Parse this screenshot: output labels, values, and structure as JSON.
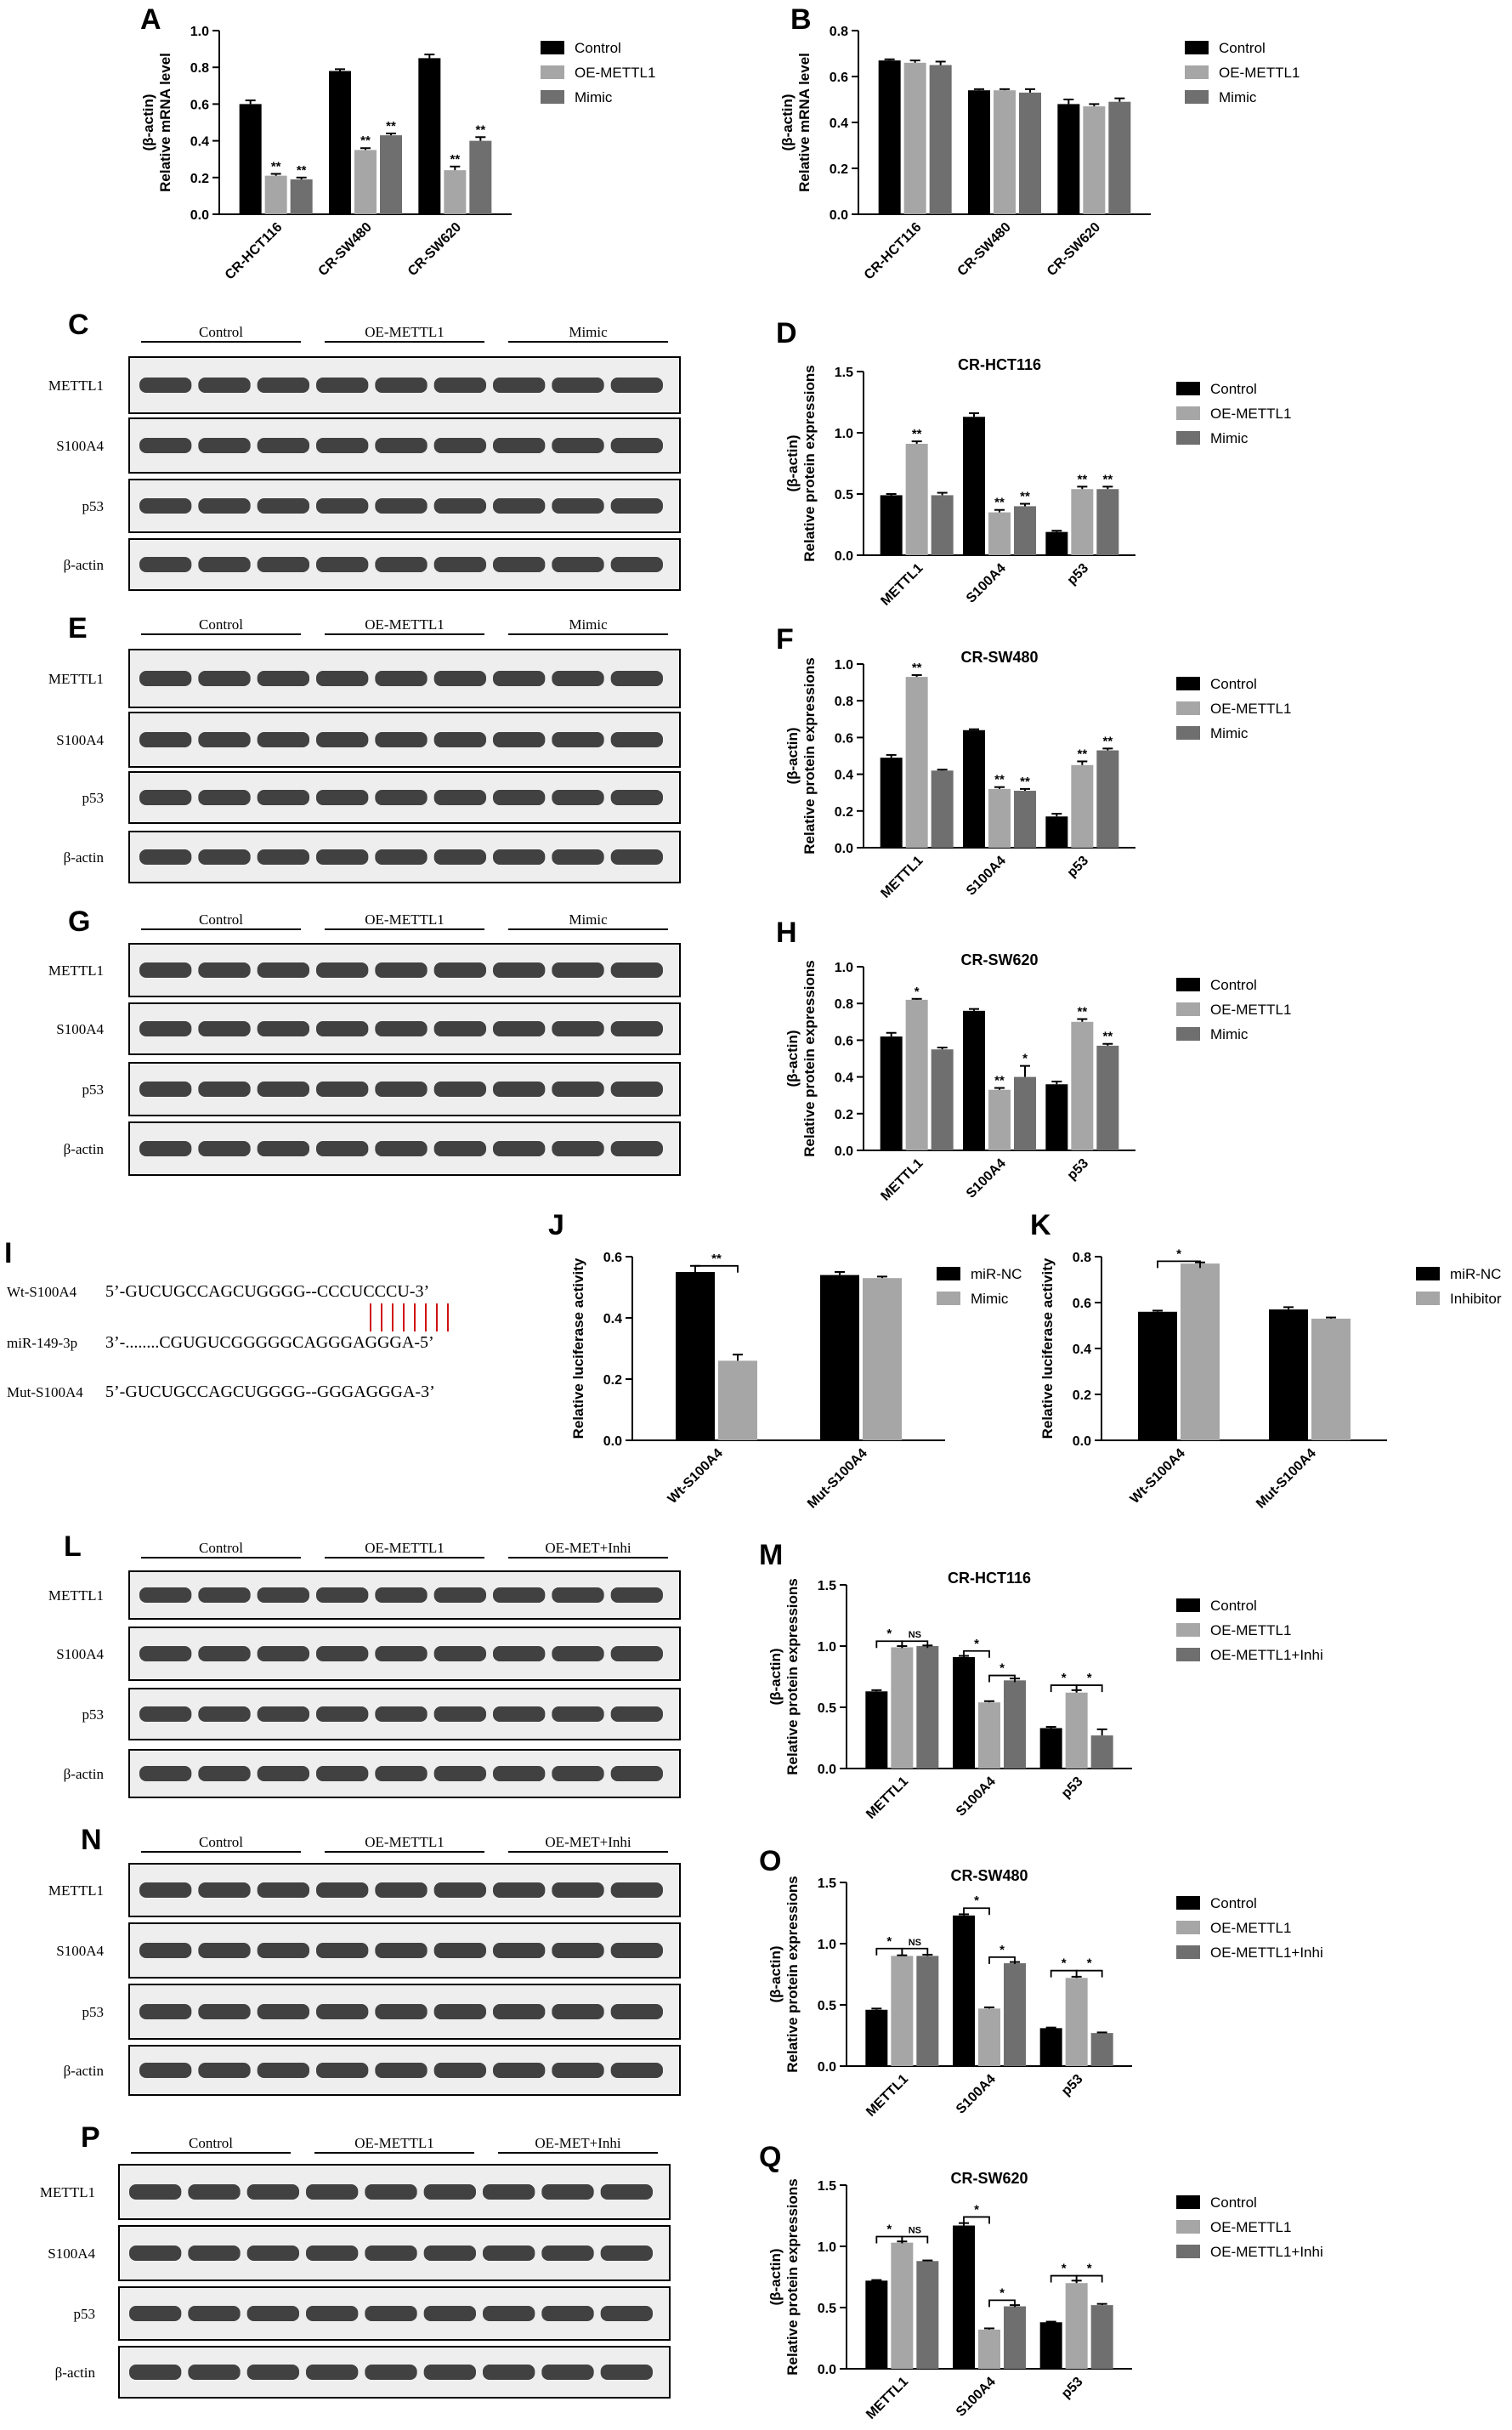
{
  "colors": {
    "control": "#000000",
    "oe": "#a6a6a6",
    "mimic": "#6f6f6f",
    "pair1": "#000000",
    "pair2": "#a6a6a6",
    "blotBg": "#eeeeee",
    "band": "#222222"
  },
  "panels": {
    "A": {
      "letter": "A",
      "ylabel": [
        "Relative mRNA level",
        "(β-actin)"
      ],
      "title": "",
      "yticks": [
        "0.0",
        "0.2",
        "0.4",
        "0.6",
        "0.8",
        "1.0"
      ],
      "legend": [
        "Control",
        "OE-METTL1",
        "Mimic"
      ]
    },
    "B": {
      "letter": "B",
      "ylabel": [
        "Relative mRNA level",
        "(β-actin)"
      ],
      "title": "",
      "yticks": [
        "0.0",
        "0.2",
        "0.4",
        "0.6",
        "0.8"
      ],
      "legend": [
        "Control",
        "OE-METTL1",
        "Mimic"
      ]
    },
    "D": {
      "letter": "D",
      "ylabel": [
        "Relative protein expressions",
        "(β-actin)"
      ],
      "title": "CR-HCT116",
      "yticks": [
        "0.0",
        "0.5",
        "1.0",
        "1.5"
      ],
      "legend": [
        "Control",
        "OE-METTL1",
        "Mimic"
      ]
    },
    "F": {
      "letter": "F",
      "ylabel": [
        "Relative protein expressions",
        "(β-actin)"
      ],
      "title": "CR-SW480",
      "yticks": [
        "0.0",
        "0.2",
        "0.4",
        "0.6",
        "0.8",
        "1.0"
      ],
      "legend": [
        "Control",
        "OE-METTL1",
        "Mimic"
      ]
    },
    "H": {
      "letter": "H",
      "ylabel": [
        "Relative protein expressions",
        "(β-actin)"
      ],
      "title": "CR-SW620",
      "yticks": [
        "0.0",
        "0.2",
        "0.4",
        "0.6",
        "0.8",
        "1.0"
      ],
      "legend": [
        "Control",
        "OE-METTL1",
        "Mimic"
      ]
    },
    "J": {
      "letter": "J",
      "ylabel": [
        "Relative luciferase activity"
      ],
      "title": "",
      "yticks": [
        "0.0",
        "0.2",
        "0.4",
        "0.6"
      ],
      "legend": [
        "miR-NC",
        "Mimic"
      ]
    },
    "K": {
      "letter": "K",
      "ylabel": [
        "Relative luciferase activity"
      ],
      "title": "",
      "yticks": [
        "0.0",
        "0.2",
        "0.4",
        "0.6",
        "0.8"
      ],
      "legend": [
        "miR-NC",
        "Inhibitor"
      ]
    },
    "M": {
      "letter": "M",
      "ylabel": [
        "Relative protein expressions",
        "(β-actin)"
      ],
      "title": "CR-HCT116",
      "yticks": [
        "0.0",
        "0.5",
        "1.0",
        "1.5"
      ],
      "legend": [
        "Control",
        "OE-METTL1",
        "OE-METTL1+Inhi"
      ]
    },
    "O": {
      "letter": "O",
      "ylabel": [
        "Relative protein expressions",
        "(β-actin)"
      ],
      "title": "CR-SW480",
      "yticks": [
        "0.0",
        "0.5",
        "1.0",
        "1.5"
      ],
      "legend": [
        "Control",
        "OE-METTL1",
        "OE-METTL1+Inhi"
      ]
    },
    "Q": {
      "letter": "Q",
      "ylabel": [
        "Relative protein expressions",
        "(β-actin)"
      ],
      "title": "CR-SW620",
      "yticks": [
        "0.0",
        "0.5",
        "1.0",
        "1.5"
      ],
      "legend": [
        "Control",
        "OE-METTL1",
        "OE-METTL1+Inhi"
      ]
    }
  },
  "blots": {
    "C": {
      "letter": "C",
      "groups": [
        "Control",
        "OE-METTL1",
        "Mimic"
      ],
      "rows": [
        "METTL1",
        "S100A4",
        "p53",
        "β-actin"
      ]
    },
    "E": {
      "letter": "E",
      "groups": [
        "Control",
        "OE-METTL1",
        "Mimic"
      ],
      "rows": [
        "METTL1",
        "S100A4",
        "p53",
        "β-actin"
      ]
    },
    "G": {
      "letter": "G",
      "groups": [
        "Control",
        "OE-METTL1",
        "Mimic"
      ],
      "rows": [
        "METTL1",
        "S100A4",
        "p53",
        "β-actin"
      ]
    },
    "L": {
      "letter": "L",
      "groups": [
        "Control",
        "OE-METTL1",
        "OE-MET+Inhi"
      ],
      "rows": [
        "METTL1",
        "S100A4",
        "p53",
        "β-actin"
      ]
    },
    "N": {
      "letter": "N",
      "groups": [
        "Control",
        "OE-METTL1",
        "OE-MET+Inhi"
      ],
      "rows": [
        "METTL1",
        "S100A4",
        "p53",
        "β-actin"
      ]
    },
    "P": {
      "letter": "P",
      "groups": [
        "Control",
        "OE-METTL1",
        "OE-MET+Inhi"
      ],
      "rows": [
        "METTL1",
        "S100A4",
        "p53",
        "β-actin"
      ]
    }
  },
  "sequence": {
    "letter": "I",
    "rows": [
      {
        "label": "Wt-S100A4",
        "seq": "5’-GUCUGCCAGCUGGGG--CCCUCCCU-3’"
      },
      {
        "label": "miR-149-3p",
        "seq": "3’-........CGUGUCGGGGGCAGGGAGGGA-5’"
      },
      {
        "label": "Mut-S100A4",
        "seq": "5’-GUCUGCCAGCUGGGG--GGGAGGGA-3’"
      }
    ]
  },
  "chart_data": [
    {
      "id": "A",
      "type": "bar",
      "categories": [
        "CR-HCT116",
        "CR-SW480",
        "CR-SW620"
      ],
      "ylim": [
        0,
        1.0
      ],
      "ylabel": "Relative mRNA level (β-actin)",
      "series": [
        {
          "name": "Control",
          "values": [
            0.6,
            0.78,
            0.85
          ],
          "err": [
            0.02,
            0.01,
            0.02
          ]
        },
        {
          "name": "OE-METTL1",
          "values": [
            0.21,
            0.35,
            0.24
          ],
          "err": [
            0.01,
            0.01,
            0.02
          ]
        },
        {
          "name": "Mimic",
          "values": [
            0.19,
            0.43,
            0.4
          ],
          "err": [
            0.01,
            0.01,
            0.02
          ]
        }
      ],
      "annotations": [
        {
          "text": "**",
          "cat": 0,
          "s": 1
        },
        {
          "text": "**",
          "cat": 0,
          "s": 2
        },
        {
          "text": "**",
          "cat": 1,
          "s": 1
        },
        {
          "text": "**",
          "cat": 1,
          "s": 2
        },
        {
          "text": "**",
          "cat": 2,
          "s": 1
        },
        {
          "text": "**",
          "cat": 2,
          "s": 2
        }
      ]
    },
    {
      "id": "B",
      "type": "bar",
      "categories": [
        "CR-HCT116",
        "CR-SW480",
        "CR-SW620"
      ],
      "ylim": [
        0,
        0.8
      ],
      "ylabel": "Relative mRNA level (β-actin)",
      "series": [
        {
          "name": "Control",
          "values": [
            0.67,
            0.54,
            0.48
          ],
          "err": [
            0.005,
            0.005,
            0.02
          ]
        },
        {
          "name": "OE-METTL1",
          "values": [
            0.66,
            0.54,
            0.47
          ],
          "err": [
            0.01,
            0.005,
            0.01
          ]
        },
        {
          "name": "Mimic",
          "values": [
            0.65,
            0.53,
            0.49
          ],
          "err": [
            0.015,
            0.015,
            0.015
          ]
        }
      ],
      "annotations": []
    },
    {
      "id": "D",
      "type": "bar",
      "title": "CR-HCT116",
      "categories": [
        "METTL1",
        "S100A4",
        "p53"
      ],
      "ylim": [
        0,
        1.5
      ],
      "ylabel": "Relative protein expressions (β-actin)",
      "series": [
        {
          "name": "Control",
          "values": [
            0.49,
            1.13,
            0.19
          ],
          "err": [
            0.01,
            0.03,
            0.01
          ]
        },
        {
          "name": "OE-METTL1",
          "values": [
            0.91,
            0.35,
            0.54
          ],
          "err": [
            0.02,
            0.02,
            0.02
          ]
        },
        {
          "name": "Mimic",
          "values": [
            0.49,
            0.4,
            0.54
          ],
          "err": [
            0.02,
            0.02,
            0.02
          ]
        }
      ],
      "annotations": [
        {
          "text": "**",
          "cat": 0,
          "s": 1
        },
        {
          "text": "**",
          "cat": 1,
          "s": 1
        },
        {
          "text": "**",
          "cat": 1,
          "s": 2
        },
        {
          "text": "**",
          "cat": 2,
          "s": 1
        },
        {
          "text": "**",
          "cat": 2,
          "s": 2
        }
      ]
    },
    {
      "id": "F",
      "type": "bar",
      "title": "CR-SW480",
      "categories": [
        "METTL1",
        "S100A4",
        "p53"
      ],
      "ylim": [
        0,
        1.0
      ],
      "ylabel": "Relative protein expressions (β-actin)",
      "series": [
        {
          "name": "Control",
          "values": [
            0.49,
            0.64,
            0.17
          ],
          "err": [
            0.015,
            0.005,
            0.015
          ]
        },
        {
          "name": "OE-METTL1",
          "values": [
            0.93,
            0.32,
            0.45
          ],
          "err": [
            0.01,
            0.01,
            0.02
          ]
        },
        {
          "name": "Mimic",
          "values": [
            0.42,
            0.31,
            0.53
          ],
          "err": [
            0.005,
            0.01,
            0.01
          ]
        }
      ],
      "annotations": [
        {
          "text": "**",
          "cat": 0,
          "s": 1
        },
        {
          "text": "**",
          "cat": 1,
          "s": 1
        },
        {
          "text": "**",
          "cat": 1,
          "s": 2
        },
        {
          "text": "**",
          "cat": 2,
          "s": 1
        },
        {
          "text": "**",
          "cat": 2,
          "s": 2
        }
      ]
    },
    {
      "id": "H",
      "type": "bar",
      "title": "CR-SW620",
      "categories": [
        "METTL1",
        "S100A4",
        "p53"
      ],
      "ylim": [
        0,
        1.0
      ],
      "ylabel": "Relative protein expressions (β-actin)",
      "series": [
        {
          "name": "Control",
          "values": [
            0.62,
            0.76,
            0.36
          ],
          "err": [
            0.02,
            0.01,
            0.015
          ]
        },
        {
          "name": "OE-METTL1",
          "values": [
            0.82,
            0.33,
            0.7
          ],
          "err": [
            0.005,
            0.01,
            0.015
          ]
        },
        {
          "name": "Mimic",
          "values": [
            0.55,
            0.4,
            0.57
          ],
          "err": [
            0.01,
            0.06,
            0.01
          ]
        }
      ],
      "annotations": [
        {
          "text": "*",
          "cat": 0,
          "s": 1
        },
        {
          "text": "**",
          "cat": 1,
          "s": 1
        },
        {
          "text": "*",
          "cat": 1,
          "s": 2
        },
        {
          "text": "**",
          "cat": 2,
          "s": 1
        },
        {
          "text": "**",
          "cat": 2,
          "s": 2
        }
      ]
    },
    {
      "id": "J",
      "type": "bar",
      "categories": [
        "Wt-S100A4",
        "Mut-S100A4"
      ],
      "ylim": [
        0,
        0.6
      ],
      "ylabel": "Relative luciferase activity",
      "series": [
        {
          "name": "miR-NC",
          "values": [
            0.55,
            0.54
          ],
          "err": [
            0.02,
            0.01
          ]
        },
        {
          "name": "Mimic",
          "values": [
            0.26,
            0.53
          ],
          "err": [
            0.02,
            0.005
          ]
        }
      ],
      "brackets": [
        {
          "cat": 0,
          "s1": 0,
          "s2": 1,
          "text": "**",
          "y": 0.57
        }
      ]
    },
    {
      "id": "K",
      "type": "bar",
      "categories": [
        "Wt-S100A4",
        "Mut-S100A4"
      ],
      "ylim": [
        0,
        0.8
      ],
      "ylabel": "Relative luciferase activity",
      "series": [
        {
          "name": "miR-NC",
          "values": [
            0.56,
            0.57
          ],
          "err": [
            0.005,
            0.01
          ]
        },
        {
          "name": "Inhibitor",
          "values": [
            0.77,
            0.53
          ],
          "err": [
            0.005,
            0.005
          ]
        }
      ],
      "brackets": [
        {
          "cat": 0,
          "s1": 0,
          "s2": 1,
          "text": "*",
          "y": 0.78
        }
      ]
    },
    {
      "id": "M",
      "type": "bar",
      "title": "CR-HCT116",
      "categories": [
        "METTL1",
        "S100A4",
        "p53"
      ],
      "ylim": [
        0,
        1.5
      ],
      "ylabel": "Relative protein expressions (β-actin)",
      "series": [
        {
          "name": "Control",
          "values": [
            0.63,
            0.91,
            0.33
          ],
          "err": [
            0.01,
            0.01,
            0.01
          ]
        },
        {
          "name": "OE-METTL1",
          "values": [
            0.99,
            0.54,
            0.62
          ],
          "err": [
            0.01,
            0.01,
            0.02
          ]
        },
        {
          "name": "OE-METTL1+Inhi",
          "values": [
            1.0,
            0.72,
            0.27
          ],
          "err": [
            0.005,
            0.015,
            0.05
          ]
        }
      ],
      "brackets": [
        {
          "cat": 0,
          "s1": 0,
          "s2": 1,
          "text": "*",
          "y": 1.04
        },
        {
          "cat": 0,
          "s1": 1,
          "s2": 2,
          "text": "NS",
          "y": 1.04
        },
        {
          "cat": 1,
          "s1": 0,
          "s2": 1,
          "text": "*",
          "y": 0.96
        },
        {
          "cat": 1,
          "s1": 1,
          "s2": 2,
          "text": "*",
          "y": 0.76
        },
        {
          "cat": 2,
          "s1": 0,
          "s2": 1,
          "text": "*",
          "y": 0.68
        },
        {
          "cat": 2,
          "s1": 1,
          "s2": 2,
          "text": "*",
          "y": 0.68
        }
      ]
    },
    {
      "id": "O",
      "type": "bar",
      "title": "CR-SW480",
      "categories": [
        "METTL1",
        "S100A4",
        "p53"
      ],
      "ylim": [
        0,
        1.5
      ],
      "ylabel": "Relative protein expressions (β-actin)",
      "series": [
        {
          "name": "Control",
          "values": [
            0.46,
            1.23,
            0.31
          ],
          "err": [
            0.01,
            0.01,
            0.005
          ]
        },
        {
          "name": "OE-METTL1",
          "values": [
            0.9,
            0.47,
            0.72
          ],
          "err": [
            0.005,
            0.01,
            0.01
          ]
        },
        {
          "name": "OE-METTL1+Inhi",
          "values": [
            0.9,
            0.84,
            0.27
          ],
          "err": [
            0.01,
            0.01,
            0.005
          ]
        }
      ],
      "brackets": [
        {
          "cat": 0,
          "s1": 0,
          "s2": 1,
          "text": "*",
          "y": 0.96
        },
        {
          "cat": 0,
          "s1": 1,
          "s2": 2,
          "text": "NS",
          "y": 0.96
        },
        {
          "cat": 1,
          "s1": 0,
          "s2": 1,
          "text": "*",
          "y": 1.29
        },
        {
          "cat": 1,
          "s1": 1,
          "s2": 2,
          "text": "*",
          "y": 0.89
        },
        {
          "cat": 2,
          "s1": 0,
          "s2": 1,
          "text": "*",
          "y": 0.78
        },
        {
          "cat": 2,
          "s1": 1,
          "s2": 2,
          "text": "*",
          "y": 0.78
        }
      ]
    },
    {
      "id": "Q",
      "type": "bar",
      "title": "CR-SW620",
      "categories": [
        "METTL1",
        "S100A4",
        "p53"
      ],
      "ylim": [
        0,
        1.5
      ],
      "ylabel": "Relative protein expressions (β-actin)",
      "series": [
        {
          "name": "Control",
          "values": [
            0.72,
            1.17,
            0.38
          ],
          "err": [
            0.005,
            0.02,
            0.005
          ]
        },
        {
          "name": "OE-METTL1",
          "values": [
            1.03,
            0.32,
            0.7
          ],
          "err": [
            0.01,
            0.01,
            0.02
          ]
        },
        {
          "name": "OE-METTL1+Inhi",
          "values": [
            0.88,
            0.51,
            0.52
          ],
          "err": [
            0.005,
            0.01,
            0.01
          ]
        }
      ],
      "brackets": [
        {
          "cat": 0,
          "s1": 0,
          "s2": 1,
          "text": "*",
          "y": 1.08
        },
        {
          "cat": 0,
          "s1": 1,
          "s2": 2,
          "text": "NS",
          "y": 1.08
        },
        {
          "cat": 1,
          "s1": 0,
          "s2": 1,
          "text": "*",
          "y": 1.24
        },
        {
          "cat": 1,
          "s1": 1,
          "s2": 2,
          "text": "*",
          "y": 0.56
        },
        {
          "cat": 2,
          "s1": 0,
          "s2": 1,
          "text": "*",
          "y": 0.76
        },
        {
          "cat": 2,
          "s1": 1,
          "s2": 2,
          "text": "*",
          "y": 0.76
        }
      ]
    }
  ]
}
